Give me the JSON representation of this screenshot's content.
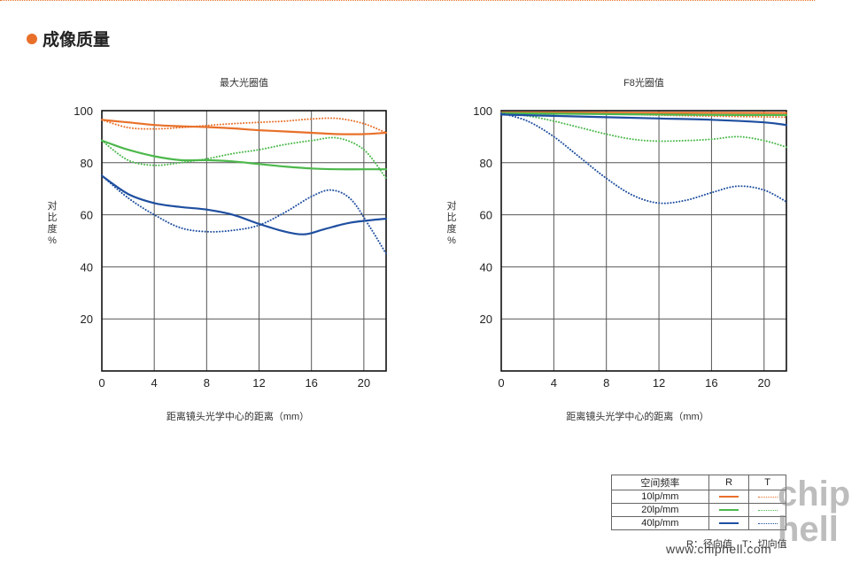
{
  "section": {
    "title": "成像质量",
    "accent_color": "#e8702a"
  },
  "colors": {
    "10": "#e8702a",
    "20": "#4cb84c",
    "40": "#1f4fa0"
  },
  "chart_data": [
    {
      "type": "line",
      "title": "最大光圈值",
      "xlabel": "距离镜头光学中心的距离（mm）",
      "ylabel": "对比度%",
      "xlim": [
        0,
        21.7
      ],
      "ylim": [
        0,
        100
      ],
      "xticks": [
        0,
        4,
        8,
        12,
        16,
        20
      ],
      "yticks": [
        20,
        40,
        60,
        80,
        100
      ],
      "grid": true,
      "series": [
        {
          "name": "10lp/mm R",
          "color": "#e8702a",
          "style": "solid",
          "x": [
            0,
            2,
            4,
            6,
            8,
            10,
            12,
            14,
            16,
            18,
            20,
            21.7
          ],
          "y": [
            96.5,
            95.5,
            94.5,
            94,
            93.7,
            93.2,
            92.5,
            92,
            91.5,
            91,
            91,
            91.5
          ]
        },
        {
          "name": "10lp/mm T",
          "color": "#e8702a",
          "style": "dotted",
          "x": [
            0,
            2,
            4,
            6,
            8,
            10,
            12,
            14,
            16,
            18,
            20,
            21.7
          ],
          "y": [
            96.5,
            93.5,
            93,
            93.5,
            94.3,
            95,
            95.5,
            96,
            96.8,
            97,
            95,
            91.5
          ]
        },
        {
          "name": "20lp/mm R",
          "color": "#4cb84c",
          "style": "solid",
          "x": [
            0,
            2,
            4,
            6,
            8,
            10,
            12,
            14,
            16,
            18,
            20,
            21.7
          ],
          "y": [
            88.5,
            85,
            82.5,
            81,
            81,
            80.5,
            79.5,
            78.5,
            77.8,
            77.5,
            77.5,
            77.5
          ]
        },
        {
          "name": "20lp/mm T",
          "color": "#4cb84c",
          "style": "dotted",
          "x": [
            0,
            2,
            4,
            6,
            8,
            10,
            12,
            14,
            16,
            18,
            20,
            21.7
          ],
          "y": [
            88.5,
            81,
            79,
            80,
            81.5,
            83.5,
            85,
            87,
            88.5,
            89.5,
            85,
            74
          ]
        },
        {
          "name": "40lp/mm R",
          "color": "#1f4fa0",
          "style": "solid",
          "x": [
            0,
            2,
            4,
            6,
            8,
            10,
            12,
            14,
            15.5,
            17,
            19,
            21.7
          ],
          "y": [
            75,
            68,
            64.5,
            63,
            62,
            60,
            56.5,
            53.5,
            52.5,
            54.5,
            57,
            58.5
          ]
        },
        {
          "name": "40lp/mm T",
          "color": "#1f4fa0",
          "style": "dotted",
          "x": [
            0,
            2,
            4,
            6,
            8,
            10,
            12,
            14,
            16,
            17.5,
            19,
            20.5,
            21.7
          ],
          "y": [
            75,
            66.5,
            60,
            55,
            53.5,
            54,
            56,
            61,
            67,
            69.5,
            66,
            55,
            45
          ]
        }
      ]
    },
    {
      "type": "line",
      "title": "F8光圈值",
      "xlabel": "距离镜头光学中心的距离（mm）",
      "ylabel": "对比度%",
      "xlim": [
        0,
        21.7
      ],
      "ylim": [
        0,
        100
      ],
      "xticks": [
        0,
        4,
        8,
        12,
        16,
        20
      ],
      "yticks": [
        20,
        40,
        60,
        80,
        100
      ],
      "grid": true,
      "series": [
        {
          "name": "10lp/mm R",
          "color": "#e8702a",
          "style": "solid",
          "x": [
            0,
            5,
            10,
            15,
            21.7
          ],
          "y": [
            99.3,
            99.3,
            99.2,
            99.2,
            99.1
          ]
        },
        {
          "name": "10lp/mm T",
          "color": "#e8702a",
          "style": "dotted",
          "x": [
            0,
            5,
            10,
            15,
            21.7
          ],
          "y": [
            99.3,
            99,
            98.5,
            98,
            97.5
          ]
        },
        {
          "name": "20lp/mm R",
          "color": "#4cb84c",
          "style": "solid",
          "x": [
            0,
            5,
            10,
            15,
            21.7
          ],
          "y": [
            99,
            98.8,
            98.6,
            98.4,
            98.3
          ]
        },
        {
          "name": "20lp/mm T",
          "color": "#4cb84c",
          "style": "dotted",
          "x": [
            0,
            2,
            4,
            6,
            8,
            10,
            12,
            14,
            16,
            18,
            20,
            21.7
          ],
          "y": [
            99,
            98,
            96,
            93.5,
            91,
            89,
            88.3,
            88.5,
            89,
            90,
            88.5,
            86
          ]
        },
        {
          "name": "40lp/mm R",
          "color": "#1f4fa0",
          "style": "solid",
          "x": [
            0,
            4,
            8,
            12,
            16,
            20,
            21.7
          ],
          "y": [
            98.5,
            98,
            97.5,
            97,
            96.5,
            95.5,
            94.5
          ]
        },
        {
          "name": "40lp/mm T",
          "color": "#1f4fa0",
          "style": "dotted",
          "x": [
            0,
            2,
            4,
            6,
            8,
            10,
            12,
            14,
            16,
            18,
            20,
            21.7
          ],
          "y": [
            99,
            96,
            90,
            82,
            74,
            67.5,
            64.5,
            65.5,
            68.5,
            71,
            69.5,
            65
          ]
        }
      ]
    }
  ],
  "legend": {
    "header": {
      "freq": "空间频率",
      "r": "R",
      "t": "T"
    },
    "rows": [
      {
        "label": "10lp/mm",
        "key": "10"
      },
      {
        "label": "20lp/mm",
        "key": "20"
      },
      {
        "label": "40lp/mm",
        "key": "40"
      }
    ],
    "note": "R：径向值　T：切向值"
  },
  "watermark": {
    "site": "www.chiphell.com",
    "logo": "chip hell"
  }
}
